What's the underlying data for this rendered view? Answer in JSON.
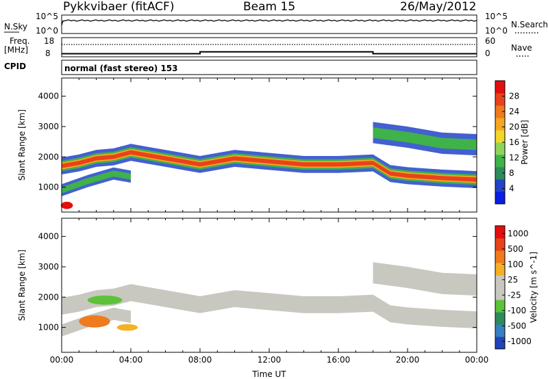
{
  "header": {
    "radar": "Pykkvibaer (fitACF)",
    "beam": "Beam 15",
    "date": "26/May/2012"
  },
  "aux": {
    "nsky_label": "N.Sky",
    "nsky_ticks": [
      "10^5",
      "10^0"
    ],
    "nsearch_label": "N.Search",
    "freq_label_top": "Freq.",
    "freq_label_unit": "[MHz]",
    "freq_ticks": [
      "18",
      "8"
    ],
    "nave_ticks": [
      "60",
      "0"
    ],
    "nave_label": "Nave",
    "cpid_label": "CPID",
    "cpid_text": "normal (fast stereo) 153",
    "freq_steps": [
      {
        "x": [
          0,
          8
        ],
        "freq": 10.5
      },
      {
        "x": [
          8,
          18
        ],
        "freq": 12.0
      },
      {
        "x": [
          18,
          24
        ],
        "freq": 10.5
      }
    ]
  },
  "chart_data": [
    {
      "type": "heatmap",
      "title": "Power",
      "xlabel": "",
      "ylabel": "Slant Range [km]",
      "xlim": [
        0,
        24
      ],
      "ylim": [
        180,
        4600
      ],
      "yticks": [
        "1000",
        "2000",
        "3000",
        "4000"
      ],
      "colorbar": {
        "label": "Power [dB]",
        "ticks": [
          "4",
          "8",
          "12",
          "16",
          "20",
          "24",
          "28"
        ],
        "colors": [
          "#0a1ee6",
          "#2244c8",
          "#2f8a5c",
          "#3fb24a",
          "#8fd45a",
          "#f2d62a",
          "#f5a623",
          "#f07a1e",
          "#e8431a",
          "#e30f0f"
        ]
      },
      "bands": [
        {
          "points": [
            [
              0,
              1700
            ],
            [
              1,
              1800
            ],
            [
              2,
              1950
            ],
            [
              3,
              2000
            ],
            [
              4,
              2150
            ],
            [
              5,
              2050
            ],
            [
              6,
              1950
            ],
            [
              7,
              1850
            ],
            [
              8,
              1750
            ],
            [
              10,
              1950
            ],
            [
              12,
              1850
            ],
            [
              14,
              1750
            ],
            [
              16,
              1750
            ],
            [
              18,
              1800
            ],
            [
              19,
              1450
            ],
            [
              20,
              1380
            ],
            [
              22,
              1300
            ],
            [
              24,
              1250
            ]
          ],
          "core_height": 140,
          "mid_height": 340,
          "outer_height": 560
        },
        {
          "points": [
            [
              0,
              900
            ],
            [
              1.5,
              1200
            ],
            [
              3,
              1450
            ],
            [
              4,
              1350
            ]
          ],
          "core_height": 0,
          "mid_height": 200,
          "outer_height": 400
        },
        {
          "points": [
            [
              18,
              2800
            ],
            [
              20,
              2650
            ],
            [
              22,
              2450
            ],
            [
              24,
              2400
            ]
          ],
          "core_height": 0,
          "mid_height": 350,
          "outer_height": 700
        }
      ],
      "patches": [
        {
          "x": 0.3,
          "y": 400,
          "rx": 0.35,
          "ry": 120,
          "color": "#e30f0f"
        }
      ]
    },
    {
      "type": "heatmap",
      "title": "Velocity",
      "xlabel": "Time UT",
      "ylabel": "Slant Range [km]",
      "xlim": [
        0,
        24
      ],
      "ylim": [
        180,
        4600
      ],
      "xticks": [
        "00:00",
        "04:00",
        "08:00",
        "12:00",
        "16:00",
        "20:00",
        "00:00"
      ],
      "yticks": [
        "1000",
        "2000",
        "3000",
        "4000"
      ],
      "colorbar": {
        "label": "Velocity [m s^-1]",
        "ticks": [
          "1000",
          "500",
          "100",
          "25",
          "-25",
          "-100",
          "-500",
          "-1000"
        ],
        "colors": [
          "#2244b8",
          "#3a7fbf",
          "#2f8a5c",
          "#5cc23a",
          "#c8c8c0",
          "#c8c8c0",
          "#f5b023",
          "#f07a1e",
          "#e8431a",
          "#e30f0f"
        ]
      },
      "bands": [
        {
          "points": [
            [
              0,
              1700
            ],
            [
              1,
              1800
            ],
            [
              2,
              1950
            ],
            [
              3,
              2000
            ],
            [
              4,
              2150
            ],
            [
              5,
              2050
            ],
            [
              6,
              1950
            ],
            [
              7,
              1850
            ],
            [
              8,
              1750
            ],
            [
              10,
              1950
            ],
            [
              12,
              1850
            ],
            [
              14,
              1750
            ],
            [
              16,
              1750
            ],
            [
              18,
              1800
            ],
            [
              19,
              1450
            ],
            [
              20,
              1380
            ],
            [
              22,
              1300
            ],
            [
              24,
              1250
            ]
          ],
          "core_height": 0,
          "mid_height": 0,
          "outer_height": 560
        },
        {
          "points": [
            [
              0,
              900
            ],
            [
              1.5,
              1200
            ],
            [
              3,
              1450
            ],
            [
              4,
              1350
            ]
          ],
          "core_height": 0,
          "mid_height": 0,
          "outer_height": 400
        },
        {
          "points": [
            [
              18,
              2800
            ],
            [
              20,
              2650
            ],
            [
              22,
              2450
            ],
            [
              24,
              2400
            ]
          ],
          "core_height": 0,
          "mid_height": 0,
          "outer_height": 700
        }
      ],
      "patches": [
        {
          "x": 1.9,
          "y": 1200,
          "rx": 0.9,
          "ry": 200,
          "color": "#f07a1e"
        },
        {
          "x": 3.8,
          "y": 1000,
          "rx": 0.6,
          "ry": 110,
          "color": "#f5b023"
        },
        {
          "x": 2.5,
          "y": 1900,
          "rx": 1.0,
          "ry": 150,
          "color": "#5cc23a"
        }
      ]
    }
  ]
}
